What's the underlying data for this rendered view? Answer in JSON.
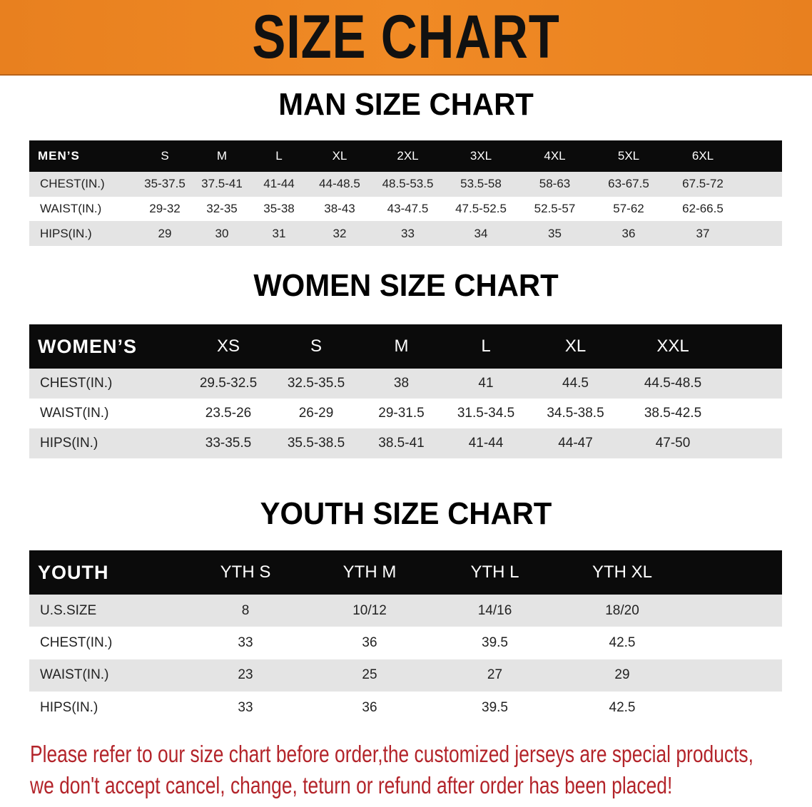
{
  "banner": {
    "title": "SIZE CHART",
    "color": "#E8801F"
  },
  "men": {
    "title": "MAN SIZE CHART",
    "header": [
      "MEN’S",
      "S",
      "M",
      "L",
      "XL",
      "2XL",
      "3XL",
      "4XL",
      "5XL",
      "6XL"
    ],
    "rows": [
      [
        "CHEST(IN.)",
        "35-37.5",
        "37.5-41",
        "41-44",
        "44-48.5",
        "48.5-53.5",
        "53.5-58",
        "58-63",
        "63-67.5",
        "67.5-72"
      ],
      [
        "WAIST(IN.)",
        "29-32",
        "32-35",
        "35-38",
        "38-43",
        "43-47.5",
        "47.5-52.5",
        "52.5-57",
        "57-62",
        "62-66.5"
      ],
      [
        "HIPS(IN.)",
        "29",
        "30",
        "31",
        "32",
        "33",
        "34",
        "35",
        "36",
        "37"
      ]
    ]
  },
  "women": {
    "title": "WOMEN SIZE CHART",
    "header": [
      "WOMEN’S",
      "XS",
      "S",
      "M",
      "L",
      "XL",
      "XXL"
    ],
    "rows": [
      [
        "CHEST(IN.)",
        "29.5-32.5",
        "32.5-35.5",
        "38",
        "41",
        "44.5",
        "44.5-48.5"
      ],
      [
        "WAIST(IN.)",
        "23.5-26",
        "26-29",
        "29-31.5",
        "31.5-34.5",
        "34.5-38.5",
        "38.5-42.5"
      ],
      [
        "HIPS(IN.)",
        "33-35.5",
        "35.5-38.5",
        "38.5-41",
        "41-44",
        "44-47",
        "47-50"
      ]
    ]
  },
  "youth": {
    "title": "YOUTH SIZE CHART",
    "header": [
      "YOUTH",
      "YTH S",
      "YTH M",
      "YTH L",
      "YTH XL"
    ],
    "rows": [
      [
        "U.S.SIZE",
        "8",
        "10/12",
        "14/16",
        "18/20"
      ],
      [
        "CHEST(IN.)",
        "33",
        "36",
        "39.5",
        "42.5"
      ],
      [
        "WAIST(IN.)",
        "23",
        "25",
        "27",
        "29"
      ],
      [
        "HIPS(IN.)",
        "33",
        "36",
        "39.5",
        "42.5"
      ]
    ]
  },
  "notice": {
    "line1": "Please refer to our size chart before order,the customized jerseys are special products,",
    "line2": "we don't accept cancel, change, teturn or refund after order has been placed!",
    "color": "#B3242A"
  }
}
